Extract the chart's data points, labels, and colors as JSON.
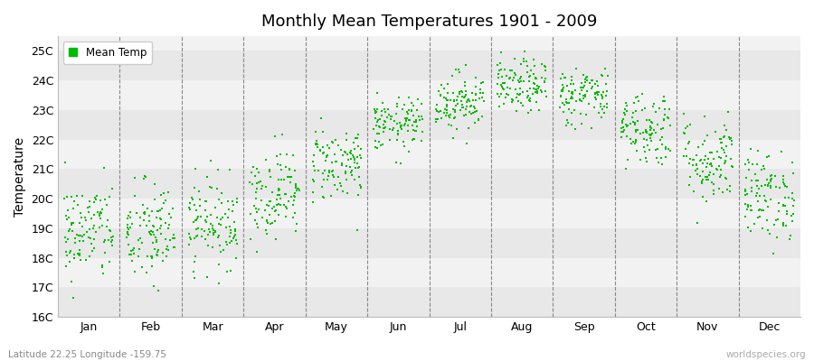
{
  "title": "Monthly Mean Temperatures 1901 - 2009",
  "ylabel": "Temperature",
  "xlabel": "",
  "subtitle": "Latitude 22.25 Longitude -159.75",
  "watermark": "worldspecies.org",
  "legend_label": "Mean Temp",
  "dot_color": "#00bb00",
  "stripe_colors": [
    "#e8e8e8",
    "#f2f2f2"
  ],
  "ylim": [
    16,
    25.5
  ],
  "yticks": [
    16,
    17,
    18,
    19,
    20,
    21,
    22,
    23,
    24,
    25
  ],
  "ytick_labels": [
    "16C",
    "17C",
    "18C",
    "19C",
    "20C",
    "21C",
    "22C",
    "23C",
    "24C",
    "25C"
  ],
  "months": [
    "Jan",
    "Feb",
    "Mar",
    "Apr",
    "May",
    "Jun",
    "Jul",
    "Aug",
    "Sep",
    "Oct",
    "Nov",
    "Dec"
  ],
  "month_centers": [
    1,
    2,
    3,
    4,
    5,
    6,
    7,
    8,
    9,
    10,
    11,
    12
  ],
  "monthly_means": [
    18.9,
    18.8,
    19.2,
    20.2,
    21.2,
    22.5,
    23.3,
    23.8,
    23.5,
    22.4,
    21.3,
    20.1
  ],
  "monthly_stds": [
    0.85,
    0.9,
    0.75,
    0.75,
    0.65,
    0.45,
    0.5,
    0.45,
    0.5,
    0.65,
    0.75,
    0.75
  ],
  "n_years": 109,
  "seed": 42,
  "figsize": [
    9.0,
    4.0
  ],
  "dpi": 100
}
